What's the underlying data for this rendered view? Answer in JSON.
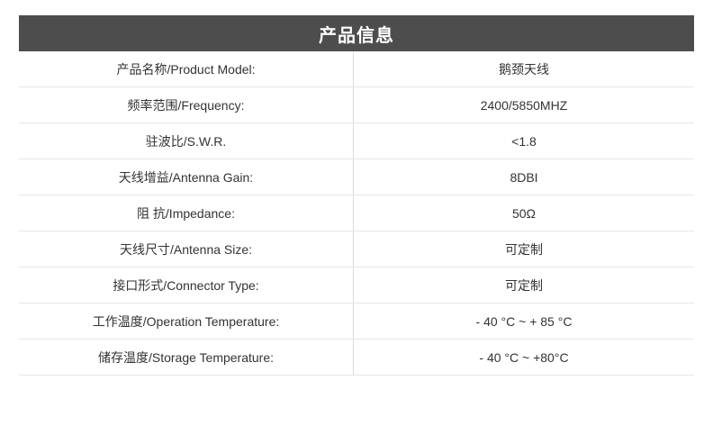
{
  "table": {
    "title": "产品信息",
    "rows": [
      {
        "label": "产品名称/Product Model:",
        "value": "鹅颈天线"
      },
      {
        "label": "频率范围/Frequency:",
        "value": "2400/5850MHZ"
      },
      {
        "label": "驻波比/S.W.R.",
        "value": "<1.8"
      },
      {
        "label": "天线增益/Antenna Gain:",
        "value": "8DBI"
      },
      {
        "label": "阻 抗/Impedance:",
        "value": "50Ω"
      },
      {
        "label": "天线尺寸/Antenna Size:",
        "value": "可定制"
      },
      {
        "label": "接口形式/Connector Type:",
        "value": "可定制"
      },
      {
        "label": "工作温度/Operation Temperature:",
        "value": "- 40 °C ~ + 85 °C"
      },
      {
        "label": "储存温度/Storage Temperature:",
        "value": "- 40 °C ~ +80°C"
      }
    ],
    "colors": {
      "header_bg": "#4d4d4d",
      "header_text": "#ffffff",
      "row_border": "#e6e6e6",
      "divider": "#dcdcdc",
      "text": "#333333"
    }
  }
}
